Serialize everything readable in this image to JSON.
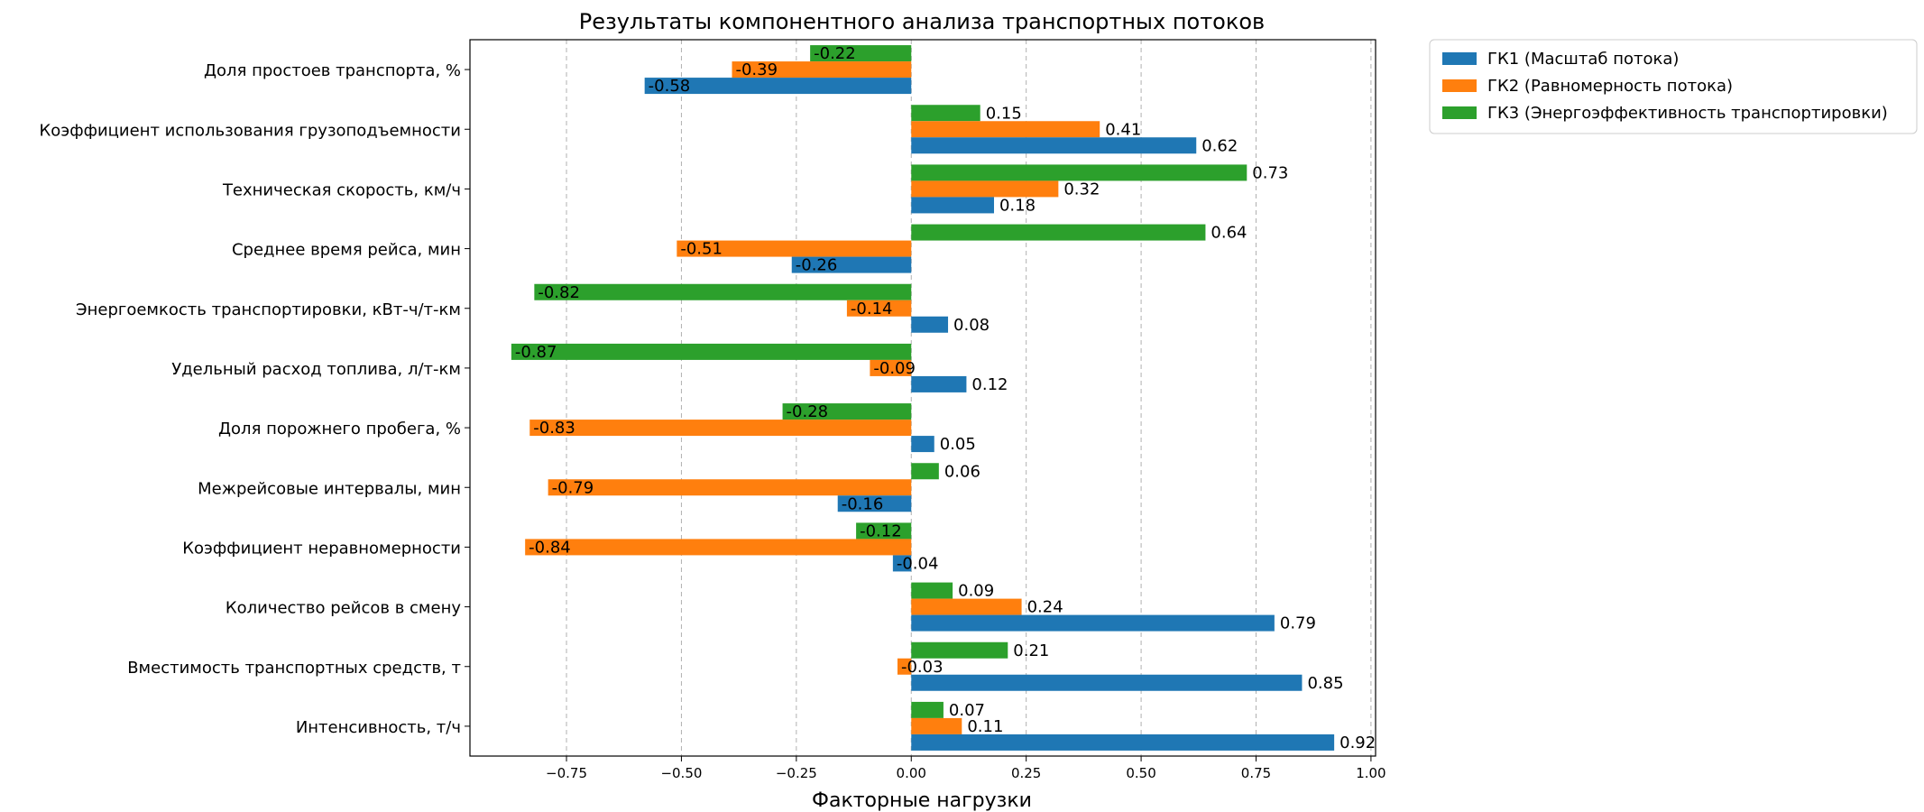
{
  "chart_data": {
    "type": "bar",
    "orientation": "horizontal",
    "title": "Результаты компонентного анализа транспортных потоков",
    "xlabel": "Факторные нагрузки",
    "ylabel": "",
    "xlim": [
      -0.96,
      1.01
    ],
    "x_ticks": [
      -0.75,
      -0.5,
      -0.25,
      0.0,
      0.25,
      0.5,
      0.75,
      1.0
    ],
    "x_tick_labels": [
      "−0.75",
      "−0.50",
      "−0.25",
      "0.00",
      "0.25",
      "0.50",
      "0.75",
      "1.00"
    ],
    "grid": "vertical dashed",
    "legend_position": "outside top-right",
    "categories": [
      "Доля простоев транспорта, %",
      "Коэффициент использования грузоподъемности",
      "Техническая скорость, км/ч",
      "Среднее время рейса, мин",
      "Энергоемкость транспортировки, кВт-ч/т-км",
      "Удельный расход топлива, л/т-км",
      "Доля порожнего пробега, %",
      "Межрейсовые интервалы, мин",
      "Коэффициент неравномерности",
      "Количество рейсов в смену",
      "Вместимость транспортных средств, т",
      "Интенсивность, т/ч"
    ],
    "series": [
      {
        "name": "ГК1 (Масштаб потока)",
        "color": "#1f77b4",
        "values": [
          -0.58,
          0.62,
          0.18,
          -0.26,
          0.08,
          0.12,
          0.05,
          -0.16,
          -0.04,
          0.79,
          0.85,
          0.92
        ]
      },
      {
        "name": "ГК2 (Равномерность потока)",
        "color": "#ff7f0e",
        "values": [
          -0.39,
          0.41,
          0.32,
          -0.51,
          -0.14,
          -0.09,
          -0.83,
          -0.79,
          -0.84,
          0.24,
          -0.03,
          0.11
        ]
      },
      {
        "name": "ГК3 (Энергоэффективность транспортировки)",
        "color": "#2ca02c",
        "values": [
          -0.22,
          0.15,
          0.73,
          0.64,
          -0.82,
          -0.87,
          -0.28,
          0.06,
          -0.12,
          0.09,
          0.21,
          0.07
        ]
      }
    ]
  }
}
